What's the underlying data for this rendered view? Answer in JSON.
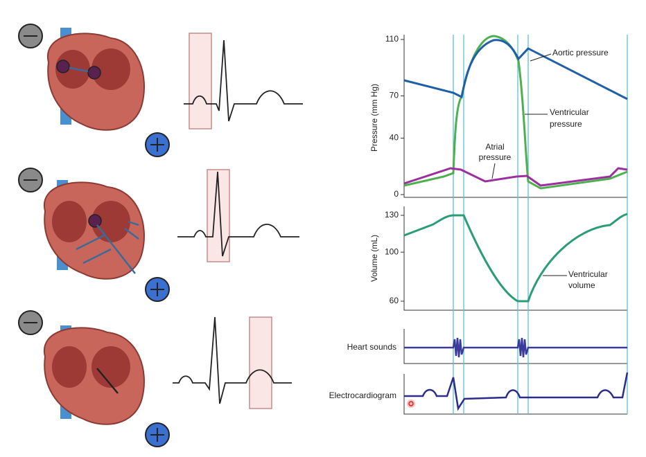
{
  "pressure": {
    "axis_label": "Pressure (mm Hg)",
    "ylim": [
      0,
      110
    ],
    "yticks": [
      0,
      40,
      70,
      110
    ],
    "aortic_label": "Aortic pressure",
    "ventricular_label": [
      "Ventricular",
      "pressure"
    ],
    "atrial_label": [
      "Atrial",
      "pressure"
    ]
  },
  "volume": {
    "axis_label": "Volume (mL)",
    "ylim": [
      60,
      130
    ],
    "yticks": [
      60,
      100,
      130
    ],
    "ventricular_label": [
      "Ventricular",
      "volume"
    ]
  },
  "heart_sounds": {
    "label": "Heart sounds"
  },
  "ecg": {
    "label": "Electrocardiogram"
  }
}
